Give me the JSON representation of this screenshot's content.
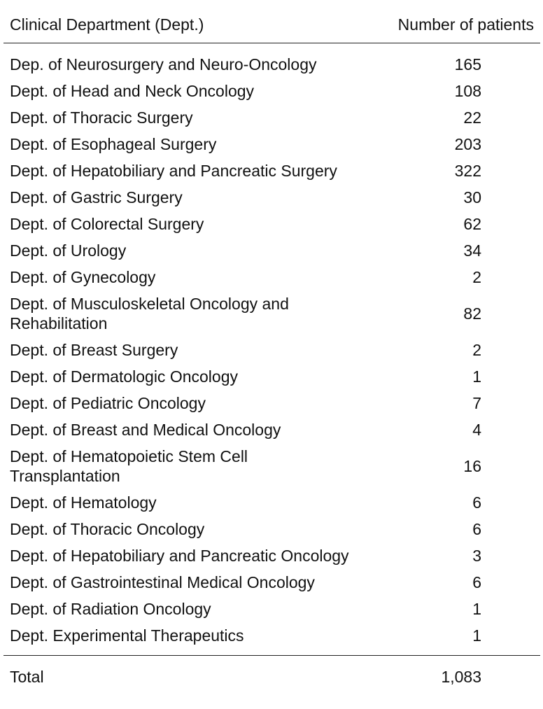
{
  "table": {
    "header": {
      "department": "Clinical Department (Dept.)",
      "patients": "Number of patients"
    },
    "rows": [
      {
        "department": "Dep. of Neurosurgery and Neuro-Oncology",
        "patients": "165"
      },
      {
        "department": "Dept. of Head and Neck Oncology",
        "patients": "108"
      },
      {
        "department": "Dept. of Thoracic Surgery",
        "patients": "22"
      },
      {
        "department": "Dept. of Esophageal Surgery",
        "patients": "203"
      },
      {
        "department": "Dept. of Hepatobiliary and Pancreatic Surgery",
        "patients": "322"
      },
      {
        "department": "Dept. of Gastric Surgery",
        "patients": "30"
      },
      {
        "department": "Dept. of Colorectal Surgery",
        "patients": "62"
      },
      {
        "department": "Dept. of Urology",
        "patients": "34"
      },
      {
        "department": "Dept. of Gynecology",
        "patients": "2"
      },
      {
        "department": "Dept. of Musculoskeletal Oncology and Rehabilitation",
        "patients": "82"
      },
      {
        "department": "Dept. of Breast Surgery",
        "patients": "2"
      },
      {
        "department": "Dept. of Dermatologic Oncology",
        "patients": "1"
      },
      {
        "department": "Dept. of Pediatric Oncology",
        "patients": "7"
      },
      {
        "department": "Dept. of Breast and Medical Oncology",
        "patients": "4"
      },
      {
        "department": "Dept. of Hematopoietic Stem Cell Transplantation",
        "patients": "16"
      },
      {
        "department": "Dept. of Hematology",
        "patients": "6"
      },
      {
        "department": "Dept. of Thoracic Oncology",
        "patients": "6"
      },
      {
        "department": "Dept. of Hepatobiliary and Pancreatic Oncology",
        "patients": "3"
      },
      {
        "department": "Dept. of Gastrointestinal Medical Oncology",
        "patients": "6"
      },
      {
        "department": "Dept. of Radiation Oncology",
        "patients": "1"
      },
      {
        "department": "Dept. Experimental Therapeutics",
        "patients": "1"
      }
    ],
    "total": {
      "label": "Total",
      "patients": "1,083"
    }
  }
}
